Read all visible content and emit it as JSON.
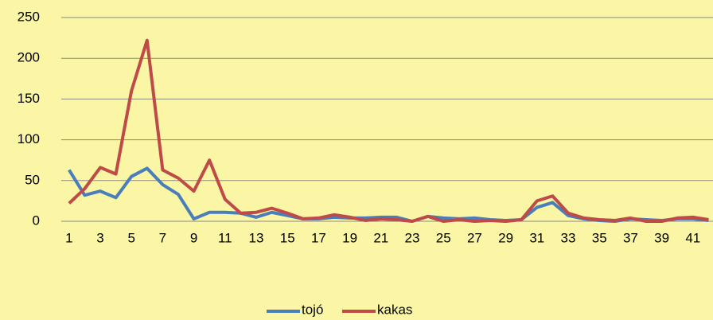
{
  "chart_data": {
    "type": "line",
    "categories": [
      "1",
      null,
      "3",
      null,
      "5",
      null,
      "7",
      null,
      "9",
      null,
      "11",
      null,
      "13",
      null,
      "15",
      null,
      "17",
      null,
      "19",
      null,
      "21",
      null,
      "23",
      null,
      "25",
      null,
      "27",
      null,
      "29",
      null,
      "31",
      null,
      "33",
      null,
      "35",
      null,
      "37",
      null,
      "39",
      null,
      "41",
      null
    ],
    "series": [
      {
        "name": "tojó",
        "color": "#4a7ebb",
        "values": [
          63,
          32,
          37,
          29,
          55,
          65,
          45,
          33,
          3,
          11,
          11,
          10,
          5,
          11,
          7,
          3,
          3,
          5,
          4,
          4,
          5,
          5,
          0,
          6,
          4,
          3,
          4,
          2,
          1,
          2,
          17,
          23,
          7,
          3,
          1,
          0,
          3,
          2,
          1,
          3,
          3,
          1
        ]
      },
      {
        "name": "kakas",
        "color": "#be4b48",
        "values": [
          22,
          40,
          66,
          58,
          160,
          222,
          63,
          53,
          37,
          75,
          27,
          10,
          11,
          16,
          10,
          3,
          4,
          8,
          5,
          1,
          3,
          2,
          0,
          6,
          0,
          2,
          0,
          1,
          0,
          2,
          25,
          31,
          10,
          4,
          2,
          1,
          4,
          0,
          0,
          4,
          5,
          2
        ]
      }
    ],
    "ylim": [
      0,
      250
    ],
    "yticks": [
      0,
      50,
      100,
      150,
      200,
      250
    ],
    "grid": true,
    "legend": "bottom"
  }
}
